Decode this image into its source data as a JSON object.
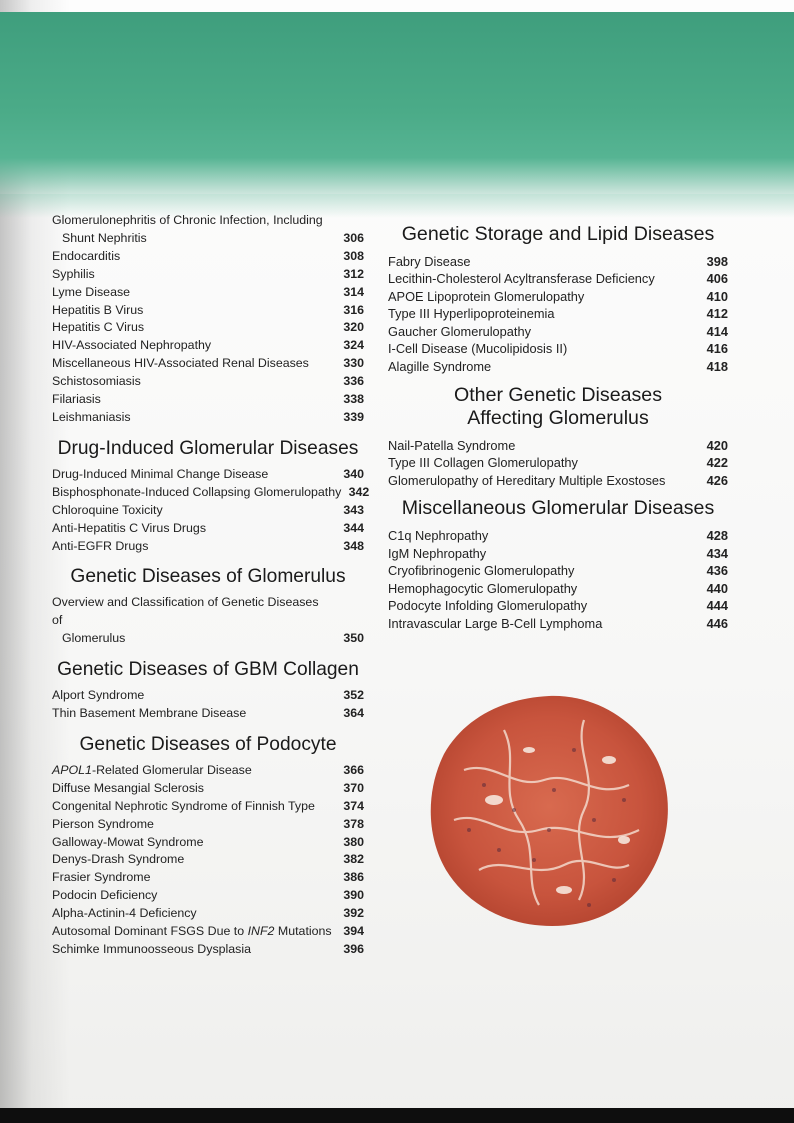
{
  "sections_left": [
    {
      "title": "",
      "entries": [
        {
          "text": "Glomerulonephritis of Chronic Infection, Including",
          "cont": "Shunt Nephritis",
          "page": "306"
        },
        {
          "text": "Endocarditis",
          "page": "308"
        },
        {
          "text": "Syphilis",
          "page": "312"
        },
        {
          "text": "Lyme Disease",
          "page": "314"
        },
        {
          "text": "Hepatitis B Virus",
          "page": "316"
        },
        {
          "text": "Hepatitis C Virus",
          "page": "320"
        },
        {
          "text": "HIV-Associated Nephropathy",
          "page": "324"
        },
        {
          "text": "Miscellaneous HIV-Associated Renal Diseases",
          "page": "330"
        },
        {
          "text": "Schistosomiasis",
          "page": "336"
        },
        {
          "text": "Filariasis",
          "page": "338"
        },
        {
          "text": "Leishmaniasis",
          "page": "339"
        }
      ]
    },
    {
      "title": "Drug-Induced Glomerular Diseases",
      "entries": [
        {
          "text": "Drug-Induced Minimal Change Disease",
          "page": "340"
        },
        {
          "text": "Bisphosphonate-Induced Collapsing Glomerulopathy",
          "page": "342"
        },
        {
          "text": "Chloroquine Toxicity",
          "page": "343"
        },
        {
          "text": "Anti-Hepatitis C Virus Drugs",
          "page": "344"
        },
        {
          "text": "Anti-EGFR Drugs",
          "page": "348"
        }
      ]
    },
    {
      "title": "Genetic Diseases of Glomerulus",
      "entries": [
        {
          "text": "Overview and Classification of Genetic Diseases of",
          "cont": "Glomerulus",
          "page": "350"
        }
      ]
    },
    {
      "title": "Genetic Diseases of GBM Collagen",
      "entries": [
        {
          "text": "Alport Syndrome",
          "page": "352"
        },
        {
          "text": "Thin Basement Membrane Disease",
          "page": "364"
        }
      ]
    },
    {
      "title": "Genetic Diseases of Podocyte",
      "entries": [
        {
          "italic": "APOL1",
          "text": "-Related Glomerular Disease",
          "page": "366"
        },
        {
          "text": "Diffuse Mesangial Sclerosis",
          "page": "370"
        },
        {
          "text": "Congenital Nephrotic Syndrome of Finnish Type",
          "page": "374"
        },
        {
          "text": "Pierson Syndrome",
          "page": "378"
        },
        {
          "text": "Galloway-Mowat Syndrome",
          "page": "380"
        },
        {
          "text": "Denys-Drash Syndrome",
          "page": "382"
        },
        {
          "text": "Frasier Syndrome",
          "page": "386"
        },
        {
          "text": "Podocin Deficiency",
          "page": "390"
        },
        {
          "text": "Alpha-Actinin-4 Deficiency",
          "page": "392"
        },
        {
          "text": "Autosomal Dominant FSGS Due to ",
          "italic_after": "INF2",
          "text_after": " Mutations",
          "page": "394"
        },
        {
          "text": "Schimke Immunoosseous Dysplasia",
          "page": "396"
        }
      ]
    }
  ],
  "sections_right": [
    {
      "title": "Genetic Storage and Lipid Diseases",
      "entries": [
        {
          "text": "Fabry Disease",
          "page": "398"
        },
        {
          "text": "Lecithin-Cholesterol Acyltransferase Deficiency",
          "page": "406"
        },
        {
          "text": "APOE Lipoprotein Glomerulopathy",
          "page": "410"
        },
        {
          "text": "Type III Hyperlipoproteinemia",
          "page": "412"
        },
        {
          "text": "Gaucher Glomerulopathy",
          "page": "414"
        },
        {
          "text": "I-Cell Disease (Mucolipidosis II)",
          "page": "416"
        },
        {
          "text": "Alagille Syndrome",
          "page": "418"
        }
      ]
    },
    {
      "title": "Other Genetic Diseases Affecting Glomerulus",
      "entries": [
        {
          "text": "Nail-Patella Syndrome",
          "page": "420"
        },
        {
          "text": "Type III Collagen Glomerulopathy",
          "page": "422"
        },
        {
          "text": "Glomerulopathy of Hereditary Multiple Exostoses",
          "page": "426"
        }
      ]
    },
    {
      "title": "Miscellaneous Glomerular Diseases",
      "entries": [
        {
          "text": "C1q Nephropathy",
          "page": "428"
        },
        {
          "text": "IgM Nephropathy",
          "page": "434"
        },
        {
          "text": "Cryofibrinogenic Glomerulopathy",
          "page": "436"
        },
        {
          "text": "Hemophagocytic Glomerulopathy",
          "page": "440"
        },
        {
          "text": "Podocyte Infolding Glomerulopathy",
          "page": "444"
        },
        {
          "text": "Intravascular Large B-Cell Lymphoma",
          "page": "446"
        }
      ]
    }
  ],
  "colors": {
    "band_green": "#4bab88",
    "page_number": "#111111",
    "stain_red": "#c8543d"
  },
  "image": {
    "icon": "glomerulus-micrograph"
  }
}
